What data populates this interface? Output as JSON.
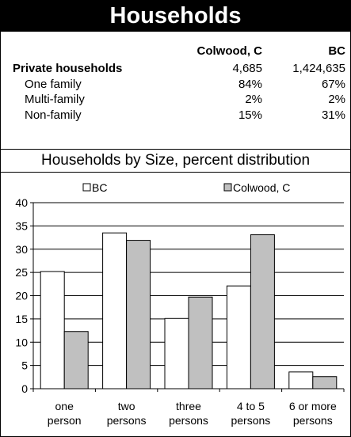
{
  "title": "Households",
  "table": {
    "columns": [
      "Colwood, C",
      "BC"
    ],
    "rows": [
      {
        "label": "Private households",
        "bold": true,
        "values": [
          "4,685",
          "1,424,635"
        ]
      },
      {
        "label": "One family",
        "bold": false,
        "values": [
          "84%",
          "67%"
        ]
      },
      {
        "label": "Multi-family",
        "bold": false,
        "values": [
          "2%",
          "2%"
        ]
      },
      {
        "label": "Non-family",
        "bold": false,
        "values": [
          "15%",
          "31%"
        ]
      }
    ]
  },
  "chart_data": {
    "type": "bar",
    "title": "Households by Size, percent distribution",
    "categories": [
      [
        "one",
        "person"
      ],
      [
        "two",
        "persons"
      ],
      [
        "three",
        "persons"
      ],
      [
        "4 to 5",
        "persons"
      ],
      [
        "6 or  more",
        "persons"
      ]
    ],
    "series": [
      {
        "name": "BC",
        "values": [
          25.2,
          33.5,
          15.1,
          22.1,
          3.6
        ],
        "color": "#ffffff"
      },
      {
        "name": "Colwood, C",
        "values": [
          12.3,
          31.9,
          19.7,
          33.1,
          2.6
        ],
        "color": "#c0c0c0"
      }
    ],
    "ylim": [
      0,
      40
    ],
    "yticks": [
      0,
      5,
      10,
      15,
      20,
      25,
      30,
      35,
      40
    ],
    "grid": true,
    "legend": "top"
  }
}
